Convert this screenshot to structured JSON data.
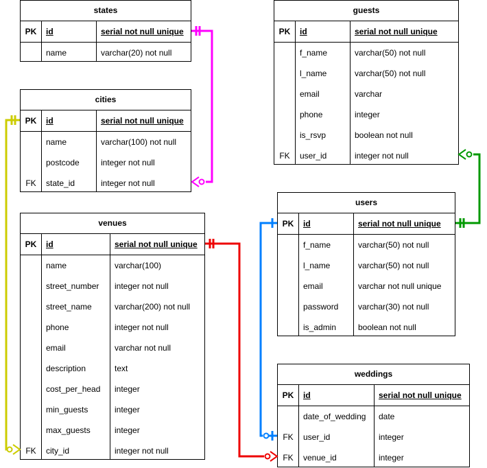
{
  "tables": {
    "states": {
      "title": "states",
      "rows": [
        {
          "key": "PK",
          "name": "id",
          "type": "serial not null unique"
        },
        {
          "key": "",
          "name": "name",
          "type": "varchar(20) not null"
        }
      ]
    },
    "cities": {
      "title": "cities",
      "rows": [
        {
          "key": "PK",
          "name": "id",
          "type": "serial not null unique"
        },
        {
          "key": "",
          "name": "name",
          "type": "varchar(100) not null"
        },
        {
          "key": "",
          "name": "postcode",
          "type": "integer not null"
        },
        {
          "key": "FK",
          "name": "state_id",
          "type": "integer not null"
        }
      ]
    },
    "venues": {
      "title": "venues",
      "rows": [
        {
          "key": "PK",
          "name": "id",
          "type": "serial not null unique"
        },
        {
          "key": "",
          "name": "name",
          "type": "varchar(100)"
        },
        {
          "key": "",
          "name": "street_number",
          "type": "integer not null"
        },
        {
          "key": "",
          "name": "street_name",
          "type": "varchar(200) not null"
        },
        {
          "key": "",
          "name": "phone",
          "type": "integer not null"
        },
        {
          "key": "",
          "name": "email",
          "type": "varchar not null"
        },
        {
          "key": "",
          "name": "description",
          "type": "text"
        },
        {
          "key": "",
          "name": "cost_per_head",
          "type": "integer"
        },
        {
          "key": "",
          "name": "min_guests",
          "type": "integer"
        },
        {
          "key": "",
          "name": "max_guests",
          "type": "integer"
        },
        {
          "key": "FK",
          "name": "city_id",
          "type": "integer not null"
        }
      ]
    },
    "guests": {
      "title": "guests",
      "rows": [
        {
          "key": "PK",
          "name": "id",
          "type": "serial not null unique"
        },
        {
          "key": "",
          "name": "f_name",
          "type": "varchar(50) not null"
        },
        {
          "key": "",
          "name": "l_name",
          "type": "varchar(50) not null"
        },
        {
          "key": "",
          "name": "email",
          "type": "varchar"
        },
        {
          "key": "",
          "name": "phone",
          "type": "integer"
        },
        {
          "key": "",
          "name": "is_rsvp",
          "type": "boolean not null"
        },
        {
          "key": "FK",
          "name": "user_id",
          "type": "integer not null"
        }
      ]
    },
    "users": {
      "title": "users",
      "rows": [
        {
          "key": "PK",
          "name": "id",
          "type": "serial not null unique"
        },
        {
          "key": "",
          "name": "f_name",
          "type": "varchar(50) not null"
        },
        {
          "key": "",
          "name": "l_name",
          "type": "varchar(50) not null"
        },
        {
          "key": "",
          "name": "email",
          "type": "varchar not null unique"
        },
        {
          "key": "",
          "name": "password",
          "type": "varchar(30) not null"
        },
        {
          "key": "",
          "name": "is_admin",
          "type": "boolean not null"
        }
      ]
    },
    "weddings": {
      "title": "weddings",
      "rows": [
        {
          "key": "PK",
          "name": "id",
          "type": "serial not null unique"
        },
        {
          "key": "",
          "name": "date_of_wedding",
          "type": "date"
        },
        {
          "key": "FK",
          "name": "user_id",
          "type": "integer"
        },
        {
          "key": "FK",
          "name": "venue_id",
          "type": "integer"
        }
      ]
    }
  },
  "relationships": [
    {
      "from": "cities.state_id",
      "to": "states.id",
      "color": "#ff00ff"
    },
    {
      "from": "venues.city_id",
      "to": "cities.id",
      "color": "#cccc00"
    },
    {
      "from": "guests.user_id",
      "to": "users.id",
      "color": "#009900"
    },
    {
      "from": "weddings.user_id",
      "to": "users.id",
      "color": "#007fff"
    },
    {
      "from": "weddings.venue_id",
      "to": "venues.id",
      "color": "#ee0000"
    }
  ]
}
